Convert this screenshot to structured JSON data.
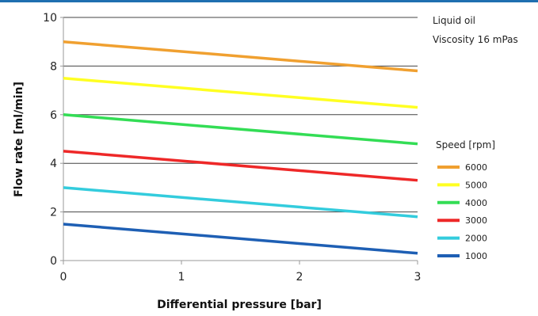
{
  "chart_data": {
    "type": "line",
    "xlabel": "Differential pressure [bar]",
    "ylabel": "Flow rate [ml/min]",
    "xlim": [
      0,
      3
    ],
    "ylim": [
      0,
      10
    ],
    "x_ticks": [
      0,
      1,
      2,
      3
    ],
    "y_ticks": [
      0,
      2,
      4,
      6,
      8,
      10
    ],
    "grid": "horizontal",
    "annotations": [
      "Liquid oil",
      "Viscosity 16 mPas"
    ],
    "legend_title": "Speed [rpm]",
    "legend_position": "right",
    "x": [
      0,
      3
    ],
    "series": [
      {
        "name": "6000",
        "color": "#f0a030",
        "values": [
          9.0,
          7.8
        ]
      },
      {
        "name": "5000",
        "color": "#ffff22",
        "values": [
          7.5,
          6.3
        ]
      },
      {
        "name": "4000",
        "color": "#33dd55",
        "values": [
          6.0,
          4.8
        ]
      },
      {
        "name": "3000",
        "color": "#ee2828",
        "values": [
          4.5,
          3.3
        ]
      },
      {
        "name": "2000",
        "color": "#33ccdd",
        "values": [
          3.0,
          1.8
        ]
      },
      {
        "name": "1000",
        "color": "#1e5fb4",
        "values": [
          1.5,
          0.3
        ]
      }
    ]
  }
}
